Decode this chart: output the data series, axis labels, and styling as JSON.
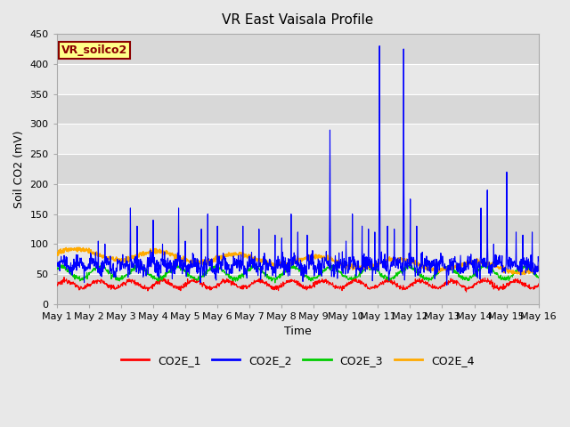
{
  "title": "VR East Vaisala Profile",
  "xlabel": "Time",
  "ylabel": "Soil CO2 (mV)",
  "ylim": [
    0,
    450
  ],
  "annotation_text": "VR_soilco2",
  "series_colors": {
    "CO2E_1": "#ff0000",
    "CO2E_2": "#0000ff",
    "CO2E_3": "#00cc00",
    "CO2E_4": "#ffaa00"
  },
  "x_tick_labels": [
    "May 1",
    "May 2",
    "May 3",
    "May 4",
    "May 5",
    "May 6",
    "May 7",
    "May 8",
    "May 9",
    "May 10",
    "May 11",
    "May 12",
    "May 13",
    "May 14",
    "May 15",
    "May 16"
  ],
  "plot_bg_color": "#e8e8e8",
  "fig_bg_color": "#e8e8e8",
  "title_fontsize": 11,
  "axis_label_fontsize": 9,
  "tick_fontsize": 8
}
